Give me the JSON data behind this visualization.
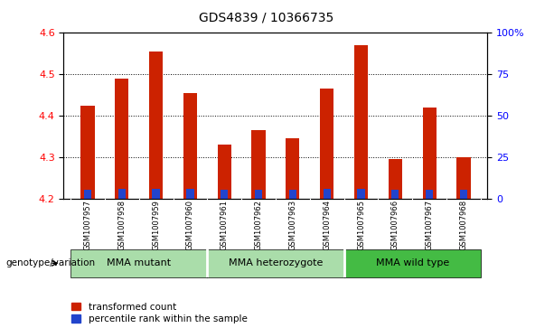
{
  "title": "GDS4839 / 10366735",
  "samples": [
    "GSM1007957",
    "GSM1007958",
    "GSM1007959",
    "GSM1007960",
    "GSM1007961",
    "GSM1007962",
    "GSM1007963",
    "GSM1007964",
    "GSM1007965",
    "GSM1007966",
    "GSM1007967",
    "GSM1007968"
  ],
  "transformed_count": [
    4.425,
    4.49,
    4.555,
    4.455,
    4.33,
    4.365,
    4.345,
    4.465,
    4.57,
    4.295,
    4.42,
    4.3
  ],
  "percentile_rank": [
    5,
    6,
    6,
    6,
    5,
    5,
    5,
    6,
    6,
    5,
    5,
    5
  ],
  "ylim_left": [
    4.2,
    4.6
  ],
  "ylim_right": [
    0,
    100
  ],
  "yticks_left": [
    4.2,
    4.3,
    4.4,
    4.5,
    4.6
  ],
  "yticks_right": [
    0,
    25,
    50,
    75,
    100
  ],
  "bar_bottom": 4.2,
  "groups": [
    {
      "label": "MMA mutant",
      "start": 0,
      "end": 4
    },
    {
      "label": "MMA heterozygote",
      "start": 4,
      "end": 8
    },
    {
      "label": "MMA wild type",
      "start": 8,
      "end": 12
    }
  ],
  "group_label": "genotype/variation",
  "red_color": "#cc2200",
  "blue_color": "#2244cc",
  "bg_plot": "#ffffff",
  "bg_names": "#d0d0d0",
  "bg_group_light": "#aaddaa",
  "bg_group_dark": "#44bb44",
  "title_fontsize": 10,
  "tick_fontsize": 8,
  "bar_width": 0.4
}
